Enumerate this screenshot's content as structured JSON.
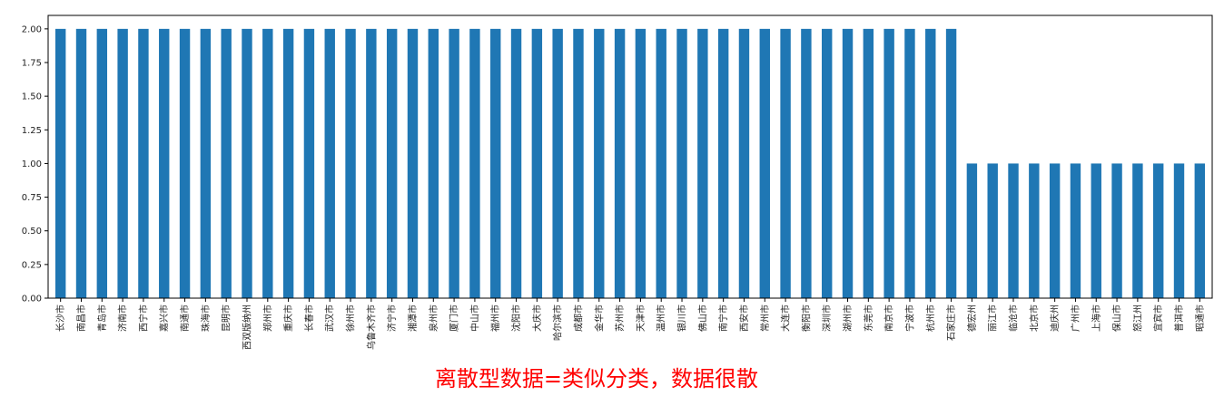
{
  "caption": {
    "text": "离散型数据=类似分类，数据很散",
    "color": "#ff0000"
  },
  "colors": {
    "bar": "#1f77b4",
    "axis": "#000000"
  },
  "chart_data": {
    "type": "bar",
    "title": "",
    "xlabel": "",
    "ylabel": "",
    "ylim": [
      0,
      2.1
    ],
    "yticks": [
      0.0,
      0.25,
      0.5,
      0.75,
      1.0,
      1.25,
      1.5,
      1.75,
      2.0
    ],
    "ytick_labels": [
      "0.00",
      "0.25",
      "0.50",
      "0.75",
      "1.00",
      "1.25",
      "1.50",
      "1.75",
      "2.00"
    ],
    "grid": false,
    "legend": "none",
    "categories": [
      "长沙市",
      "南昌市",
      "青岛市",
      "济南市",
      "西宁市",
      "嘉兴市",
      "南通市",
      "珠海市",
      "昆明市",
      "西双版纳州",
      "郑州市",
      "重庆市",
      "长春市",
      "武汉市",
      "徐州市",
      "乌鲁木齐市",
      "济宁市",
      "湘潭市",
      "泉州市",
      "厦门市",
      "中山市",
      "福州市",
      "沈阳市",
      "大庆市",
      "哈尔滨市",
      "成都市",
      "金华市",
      "苏州市",
      "天津市",
      "温州市",
      "银川市",
      "佛山市",
      "南宁市",
      "西安市",
      "常州市",
      "大连市",
      "衡阳市",
      "深圳市",
      "湖州市",
      "东莞市",
      "南京市",
      "宁波市",
      "杭州市",
      "石家庄市",
      "德宏州",
      "丽江市",
      "临沧市",
      "北京市",
      "迪庆州",
      "广州市",
      "上海市",
      "保山市",
      "怒江州",
      "宜宾市",
      "普洱市",
      "昭通市"
    ],
    "values": [
      2,
      2,
      2,
      2,
      2,
      2,
      2,
      2,
      2,
      2,
      2,
      2,
      2,
      2,
      2,
      2,
      2,
      2,
      2,
      2,
      2,
      2,
      2,
      2,
      2,
      2,
      2,
      2,
      2,
      2,
      2,
      2,
      2,
      2,
      2,
      2,
      2,
      2,
      2,
      2,
      2,
      2,
      2,
      2,
      1,
      1,
      1,
      1,
      1,
      1,
      1,
      1,
      1,
      1,
      1,
      1
    ]
  }
}
